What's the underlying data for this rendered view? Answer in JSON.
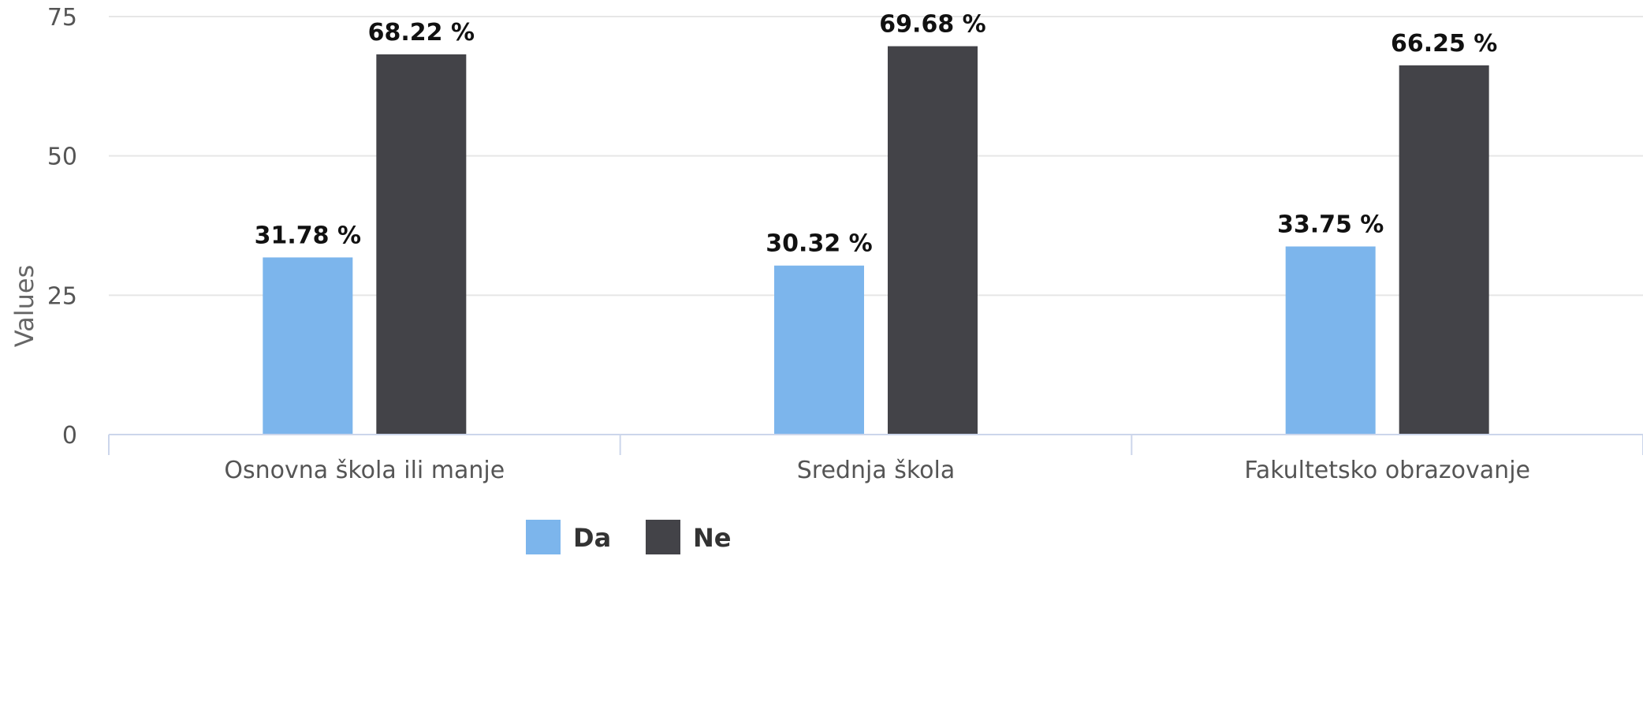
{
  "chart_data": {
    "type": "bar",
    "categories": [
      "Osnovna škola ili manje",
      "Srednja škola",
      "Fakultetsko obrazovanje"
    ],
    "series": [
      {
        "name": "Da",
        "color": "#7cb5ec",
        "values": [
          31.78,
          30.32,
          33.75
        ],
        "labels": [
          "31.78 %",
          "30.32 %",
          "33.75 %"
        ]
      },
      {
        "name": "Ne",
        "color": "#434348",
        "values": [
          68.22,
          69.68,
          66.25
        ],
        "labels": [
          "68.22 %",
          "69.68 %",
          "66.25 %"
        ]
      }
    ],
    "ylabel": "Values",
    "xlabel": "",
    "ylim": [
      0,
      75
    ],
    "yticks": [
      0,
      25,
      50,
      75
    ],
    "ytick_labels": [
      "0",
      "25",
      "50",
      "75"
    ],
    "grid": true,
    "legend_position": "bottom-center"
  }
}
